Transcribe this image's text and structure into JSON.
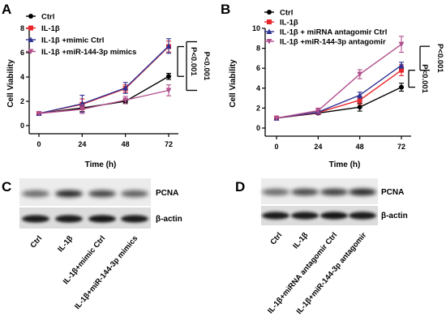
{
  "panels": {
    "A": "A",
    "B": "B",
    "C": "C",
    "D": "D"
  },
  "chart_data": [
    {
      "id": "A",
      "type": "line",
      "xlabel": "Time (h)",
      "ylabel": "Cell Viability",
      "x": [
        0,
        24,
        48,
        72
      ],
      "xlim": [
        0,
        72
      ],
      "ylim": [
        0,
        8
      ],
      "yticks": [
        0,
        2,
        4,
        6,
        8
      ],
      "legend_position": "top-left",
      "series": [
        {
          "name": "Ctrl",
          "color": "#000000",
          "marker": "circle",
          "values": [
            1.0,
            1.45,
            2.0,
            4.05
          ],
          "errors": [
            0.05,
            0.3,
            0.15,
            0.25
          ]
        },
        {
          "name": "IL-1β",
          "color": "#e8262b",
          "marker": "square",
          "values": [
            1.0,
            1.75,
            3.05,
            6.5
          ],
          "errors": [
            0.05,
            0.45,
            0.3,
            0.45
          ]
        },
        {
          "name": "IL-1β +mimic Ctrl",
          "color": "#2e3192",
          "marker": "triangle",
          "values": [
            1.0,
            1.8,
            3.1,
            6.55
          ],
          "errors": [
            0.05,
            0.7,
            0.45,
            0.6
          ]
        },
        {
          "name": "IL-1β +miR-144-3p mimics",
          "color": "#b0508c",
          "marker": "triangle-down",
          "values": [
            1.0,
            1.35,
            2.1,
            2.9
          ],
          "errors": [
            0.05,
            0.35,
            0.3,
            0.45
          ]
        }
      ],
      "annotations": [
        {
          "label": "P<0.001",
          "from": 6.5,
          "to": 4.05
        },
        {
          "label": "P<0.001",
          "from": 6.9,
          "to": 2.9
        }
      ]
    },
    {
      "id": "B",
      "type": "line",
      "xlabel": "Time (h)",
      "ylabel": "Cell Viability",
      "x": [
        0,
        24,
        48,
        72
      ],
      "xlim": [
        0,
        72
      ],
      "ylim": [
        0,
        10
      ],
      "yticks": [
        0,
        2,
        4,
        6,
        8,
        10
      ],
      "legend_position": "top-left",
      "series": [
        {
          "name": "Ctrl",
          "color": "#000000",
          "marker": "circle",
          "values": [
            1.0,
            1.5,
            2.1,
            4.1
          ],
          "errors": [
            0.05,
            0.15,
            0.4,
            0.4
          ]
        },
        {
          "name": "IL-1β",
          "color": "#e8262b",
          "marker": "square",
          "values": [
            1.0,
            1.55,
            2.8,
            5.8
          ],
          "errors": [
            0.05,
            0.15,
            0.4,
            0.55
          ]
        },
        {
          "name": "IL-1β + miRNA antagomir Ctrl",
          "color": "#2e3192",
          "marker": "triangle",
          "values": [
            1.0,
            1.6,
            3.3,
            6.3
          ],
          "errors": [
            0.05,
            0.15,
            0.3,
            0.3
          ]
        },
        {
          "name": "IL-1β +miR-144-3p antagomir",
          "color": "#b0508c",
          "marker": "triangle-down",
          "values": [
            1.0,
            1.75,
            5.4,
            8.4
          ],
          "errors": [
            0.05,
            0.25,
            0.45,
            0.8
          ]
        }
      ],
      "annotations": [
        {
          "label": "P<0.001",
          "from": 5.8,
          "to": 4.1
        },
        {
          "label": "P<0.001",
          "from": 8.2,
          "to": 5.8
        }
      ]
    }
  ],
  "blots": {
    "C": {
      "bands": [
        "PCNA",
        "β-actin"
      ],
      "lanes": [
        "Ctrl",
        "IL-1β",
        "IL-1β+mimic Ctrl",
        "IL-1β+miR-144-3p mimics"
      ]
    },
    "D": {
      "bands": [
        "PCNA",
        "β-actin"
      ],
      "lanes": [
        "Ctrl",
        "IL-1β",
        "IL-1β+miRNA antagomir Ctrl",
        "IL-1β+miR-144-3p antagomir"
      ]
    }
  }
}
